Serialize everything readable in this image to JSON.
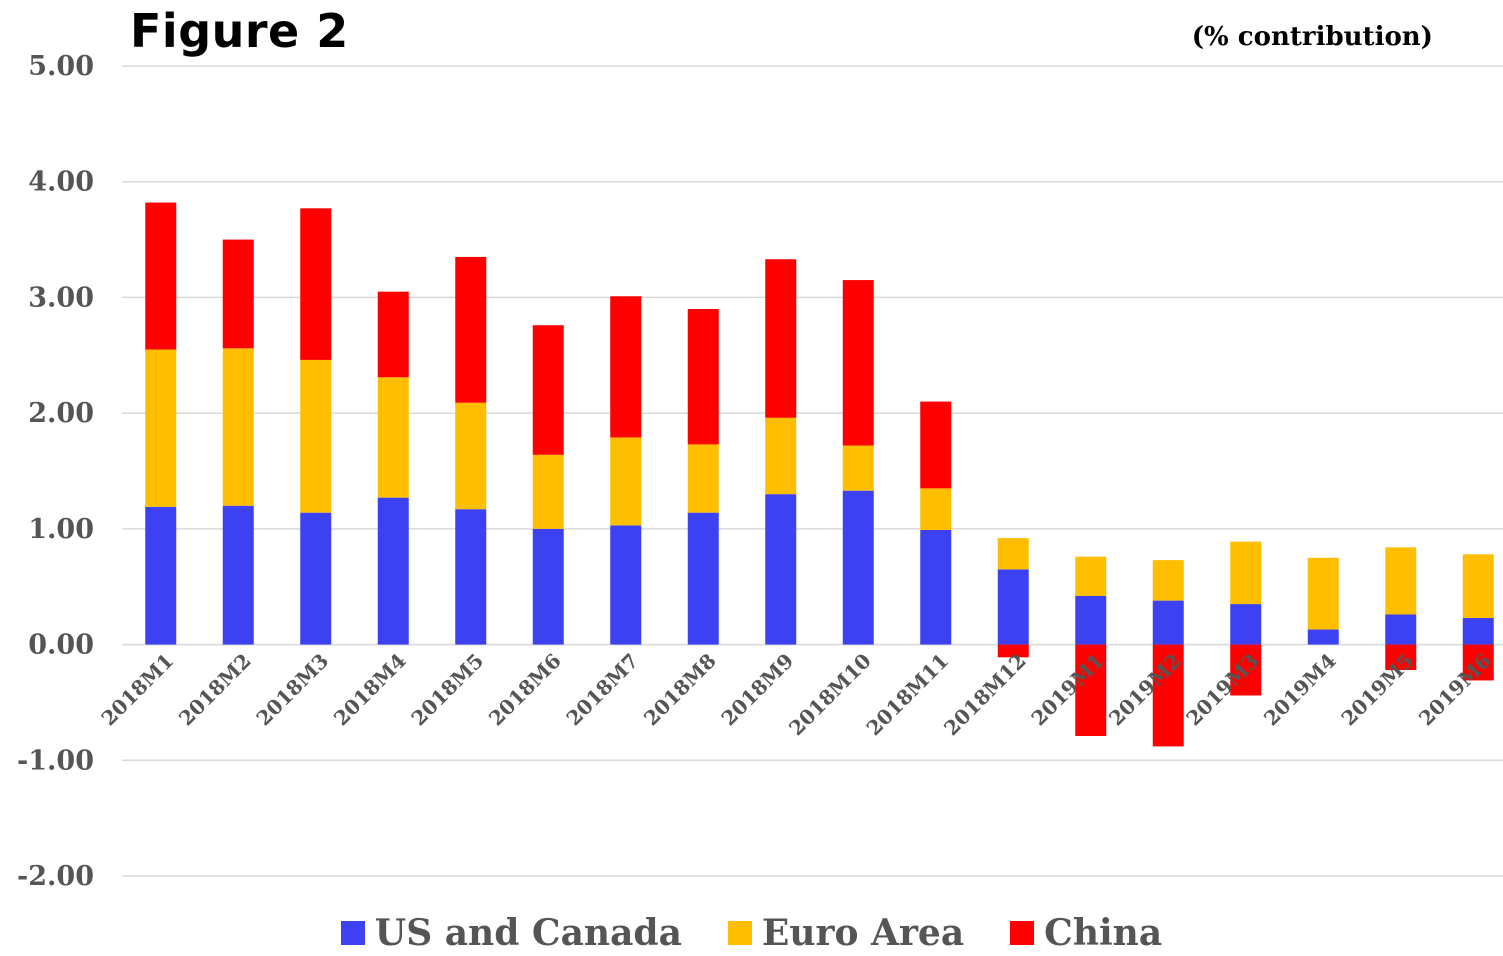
{
  "figure": {
    "title": "Figure 2",
    "subtitle": "(% contribution)"
  },
  "chart_data": {
    "type": "bar",
    "stacked": true,
    "categories": [
      "2018M1",
      "2018M2",
      "2018M3",
      "2018M4",
      "2018M5",
      "2018M6",
      "2018M7",
      "2018M8",
      "2018M9",
      "2018M10",
      "2018M11",
      "2018M12",
      "2019M1",
      "2019M2",
      "2019M3",
      "2019M4",
      "2019M5",
      "2019M6"
    ],
    "series": [
      {
        "name": "US and Canada",
        "color": "#3c41f2",
        "values": [
          1.19,
          1.2,
          1.14,
          1.27,
          1.17,
          1.0,
          1.03,
          1.14,
          1.3,
          1.33,
          0.99,
          0.65,
          0.42,
          0.38,
          0.35,
          0.13,
          0.26,
          0.23
        ]
      },
      {
        "name": "Euro Area",
        "color": "#ffbf00",
        "values": [
          1.36,
          1.36,
          1.32,
          1.04,
          0.92,
          0.64,
          0.76,
          0.59,
          0.66,
          0.39,
          0.36,
          0.27,
          0.34,
          0.35,
          0.54,
          0.62,
          0.58,
          0.55
        ]
      },
      {
        "name": "China",
        "color": "#ff0000",
        "values": [
          1.27,
          0.94,
          1.31,
          0.74,
          1.26,
          1.12,
          1.22,
          1.17,
          1.37,
          1.43,
          0.75,
          -0.11,
          -0.79,
          -0.88,
          -0.44,
          0.0,
          -0.22,
          -0.31
        ]
      }
    ],
    "yticks": [
      "5.00",
      "4.00",
      "3.00",
      "2.00",
      "1.00",
      "0.00",
      "-1.00",
      "-2.00"
    ],
    "ylim": [
      -2,
      5
    ],
    "grid": true,
    "legend_position": "bottom"
  }
}
